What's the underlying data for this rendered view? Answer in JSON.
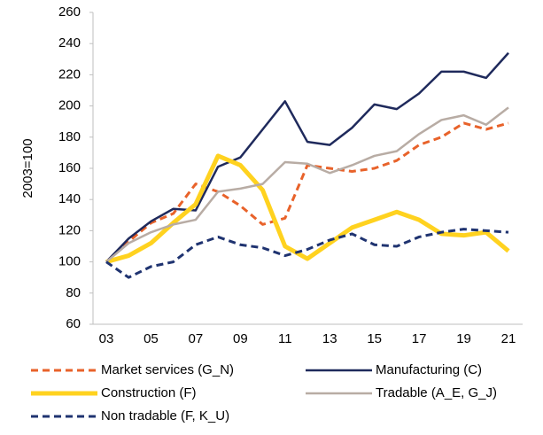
{
  "chart_data": {
    "type": "line",
    "y_label": "2003=100",
    "categories": [
      "03",
      null,
      "05",
      null,
      "07",
      null,
      "09",
      null,
      "11",
      null,
      "13",
      null,
      "15",
      null,
      "17",
      null,
      "19",
      null,
      "21"
    ],
    "ylim": [
      60,
      260
    ],
    "yticks": [
      60,
      80,
      100,
      120,
      140,
      160,
      180,
      200,
      220,
      240,
      260
    ],
    "series": [
      {
        "name": "Market services (G_N)",
        "color": "#e8622a",
        "dashed": true,
        "width": 3,
        "values": [
          100,
          113,
          125,
          131,
          150,
          145,
          136,
          124,
          128,
          162,
          160,
          158,
          160,
          165,
          175,
          180,
          189,
          185,
          189
        ]
      },
      {
        "name": "Manufacturing (C)",
        "color": "#1f2a5c",
        "dashed": false,
        "width": 2.5,
        "values": [
          100,
          115,
          126,
          134,
          133,
          161,
          167,
          185,
          203,
          177,
          175,
          186,
          201,
          198,
          208,
          222,
          222,
          218,
          234
        ]
      },
      {
        "name": "Construction (F)",
        "color": "#ffd21f",
        "dashed": false,
        "width": 5,
        "values": [
          100,
          104,
          112,
          125,
          137,
          168,
          162,
          146,
          110,
          102,
          112,
          122,
          127,
          132,
          127,
          118,
          117,
          119,
          107
        ]
      },
      {
        "name": "Tradable (A_E, G_J)",
        "color": "#b8aca4",
        "dashed": false,
        "width": 2.5,
        "values": [
          100,
          112,
          119,
          124,
          127,
          145,
          147,
          150,
          164,
          163,
          157,
          162,
          168,
          171,
          182,
          191,
          194,
          188,
          199
        ]
      },
      {
        "name": "Non tradable (F, K_U)",
        "color": "#1f3370",
        "dashed": true,
        "width": 3,
        "values": [
          100,
          90,
          97,
          100,
          111,
          116,
          111,
          109,
          104,
          108,
          114,
          118,
          111,
          110,
          116,
          119,
          121,
          120,
          119
        ]
      }
    ]
  }
}
